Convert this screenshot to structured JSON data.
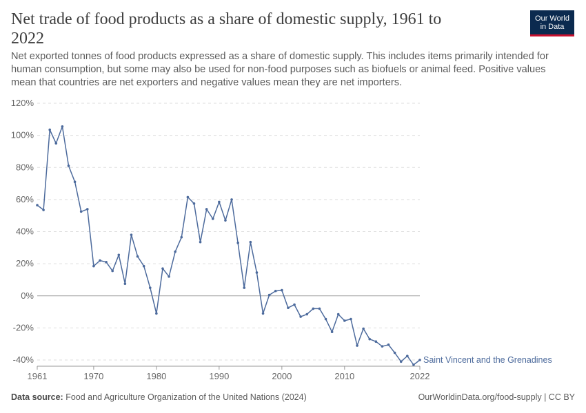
{
  "header": {
    "title": "Net trade of food products as a share of domestic supply, 1961 to 2022",
    "subtitle": "Net exported tonnes of food products expressed as a share of domestic supply. This includes items primarily intended for human consumption, but some may also be used for non-food purposes such as biofuels or animal feed. Positive values mean that countries are net exporters and negative values mean they are net importers.",
    "logo_line1": "Our World",
    "logo_line2": "in Data"
  },
  "footer": {
    "source_label": "Data source:",
    "source_text": "Food and Agriculture Organization of the United Nations (2024)",
    "right_text": "OurWorldinData.org/food-supply | CC BY"
  },
  "colors": {
    "series": "#4c6a9c",
    "grid": "#dddddd",
    "zero_line": "#a0a0a0",
    "logo_bg": "#0b2a4f",
    "logo_accent": "#c8102e"
  },
  "chart_data": {
    "type": "line",
    "title": "Net trade of food products as a share of domestic supply, 1961 to 2022",
    "xlabel": "",
    "ylabel": "",
    "xlim": [
      1961,
      2022
    ],
    "ylim": [
      -40,
      120
    ],
    "x_ticks": [
      1961,
      1970,
      1980,
      1990,
      2000,
      2010,
      2022
    ],
    "y_ticks": [
      {
        "value": 120,
        "label": "120%"
      },
      {
        "value": 100,
        "label": "100%"
      },
      {
        "value": 80,
        "label": "80%"
      },
      {
        "value": 60,
        "label": "60%"
      },
      {
        "value": 40,
        "label": "40%"
      },
      {
        "value": 20,
        "label": "20%"
      },
      {
        "value": 0,
        "label": "0%"
      },
      {
        "value": -20,
        "label": "-20%"
      },
      {
        "value": -40,
        "label": "-40%"
      }
    ],
    "grid": true,
    "series": [
      {
        "name": "Saint Vincent and the Grenadines",
        "x": [
          1961,
          1962,
          1963,
          1964,
          1965,
          1966,
          1967,
          1968,
          1969,
          1970,
          1971,
          1972,
          1973,
          1974,
          1975,
          1976,
          1977,
          1978,
          1979,
          1980,
          1981,
          1982,
          1983,
          1984,
          1985,
          1986,
          1987,
          1988,
          1989,
          1990,
          1991,
          1992,
          1993,
          1994,
          1995,
          1996,
          1997,
          1998,
          1999,
          2000,
          2001,
          2002,
          2003,
          2004,
          2005,
          2006,
          2007,
          2008,
          2009,
          2010,
          2011,
          2012,
          2013,
          2014,
          2015,
          2016,
          2017,
          2018,
          2019,
          2020,
          2021,
          2022
        ],
        "values": [
          56.5,
          53.5,
          103.5,
          95,
          105.5,
          81,
          71,
          52.5,
          54,
          18.5,
          22,
          21,
          15.5,
          25.5,
          7.5,
          38,
          24.5,
          18.5,
          5,
          -11,
          17,
          12,
          27.5,
          36.5,
          61.5,
          57.5,
          33.5,
          54,
          48,
          58.5,
          47,
          60,
          33,
          5,
          33.5,
          14.5,
          -11,
          0.5,
          3,
          3.5,
          -7.5,
          -5.5,
          -13,
          -11.5,
          -8,
          -8,
          -14.5,
          -22.5,
          -11.5,
          -15.5,
          -14.5,
          -31,
          -20.5,
          -27,
          -28.5,
          -31.5,
          -30.5,
          -35.5,
          -41,
          -37.5,
          -43,
          -40
        ]
      }
    ]
  }
}
